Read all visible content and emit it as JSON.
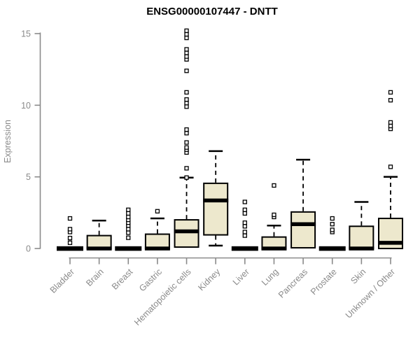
{
  "title": "ENSG00000107447 - DNTT",
  "chart_data": {
    "type": "boxplot",
    "title": "ENSG00000107447 - DNTT",
    "xlabel": "",
    "ylabel": "Expression",
    "ylim": [
      0,
      15.5
    ],
    "yticks": [
      0,
      5,
      10,
      15
    ],
    "grid": false,
    "legend": "none",
    "box_fill_color": "#EDE8CD",
    "box_border_color": "#000000",
    "axis_color": "#8A8A8A",
    "outlier_marker": "open-square",
    "categories": [
      "Bladder",
      "Brain",
      "Breast",
      "Gastric",
      "Hematopoietic cells",
      "Kidney",
      "Liver",
      "Lung",
      "Pancreas",
      "Prostate",
      "Skin",
      "Unknown / Other"
    ],
    "series": [
      {
        "name": "Bladder",
        "q1": 0,
        "median": 0,
        "q3": 0,
        "whisker_low": 0,
        "whisker_high": 0,
        "outliers": [
          0.4,
          0.73,
          1.15,
          1.35,
          2.1
        ]
      },
      {
        "name": "Brain",
        "q1": 0,
        "median": 0,
        "q3": 0.9,
        "whisker_low": 0,
        "whisker_high": 1.95,
        "outliers": []
      },
      {
        "name": "Breast",
        "q1": 0,
        "median": 0,
        "q3": 0,
        "whisker_low": 0,
        "whisker_high": 0,
        "outliers": [
          0.75,
          1.1,
          1.35,
          1.6,
          1.8,
          2.0,
          2.2,
          2.45,
          2.7
        ]
      },
      {
        "name": "Gastric",
        "q1": 0,
        "median": 0,
        "q3": 1.0,
        "whisker_low": 0,
        "whisker_high": 2.1,
        "outliers": [
          2.6
        ]
      },
      {
        "name": "Hematopoietic cells",
        "q1": 0.1,
        "median": 1.2,
        "q3": 2.0,
        "whisker_low": 0.1,
        "whisker_high": 4.95,
        "outliers": [
          4.95,
          5.6,
          6.7,
          6.9,
          7.05,
          7.4,
          8.05,
          8.3,
          9.9,
          10.15,
          10.4,
          10.9,
          12.4,
          13.2,
          13.4,
          13.65,
          13.9,
          14.7,
          14.95,
          15.2
        ]
      },
      {
        "name": "Kidney",
        "q1": 0.95,
        "median": 3.35,
        "q3": 4.55,
        "whisker_low": 0.2,
        "whisker_high": 6.8,
        "outliers": []
      },
      {
        "name": "Liver",
        "q1": 0,
        "median": 0,
        "q3": 0,
        "whisker_low": 0,
        "whisker_high": 0,
        "outliers": [
          0.9,
          1.15,
          1.55,
          1.8,
          2.45,
          2.7,
          3.25
        ]
      },
      {
        "name": "Lung",
        "q1": 0,
        "median": 0,
        "q3": 0.8,
        "whisker_low": 0,
        "whisker_high": 1.6,
        "outliers": [
          2.2,
          2.35,
          4.4
        ]
      },
      {
        "name": "Pancreas",
        "q1": 0.05,
        "median": 1.7,
        "q3": 2.55,
        "whisker_low": 0.05,
        "whisker_high": 6.2,
        "outliers": []
      },
      {
        "name": "Prostate",
        "q1": 0,
        "median": 0,
        "q3": 0,
        "whisker_low": 0,
        "whisker_high": 0,
        "outliers": [
          1.15,
          1.3,
          1.7,
          2.1
        ]
      },
      {
        "name": "Skin",
        "q1": 0,
        "median": 0,
        "q3": 1.55,
        "whisker_low": 0,
        "whisker_high": 3.25,
        "outliers": []
      },
      {
        "name": "Unknown / Other",
        "q1": 0,
        "median": 0.4,
        "q3": 2.1,
        "whisker_low": 0,
        "whisker_high": 5.0,
        "outliers": [
          5.7,
          8.35,
          8.55,
          8.8,
          10.35,
          10.9
        ]
      }
    ]
  }
}
